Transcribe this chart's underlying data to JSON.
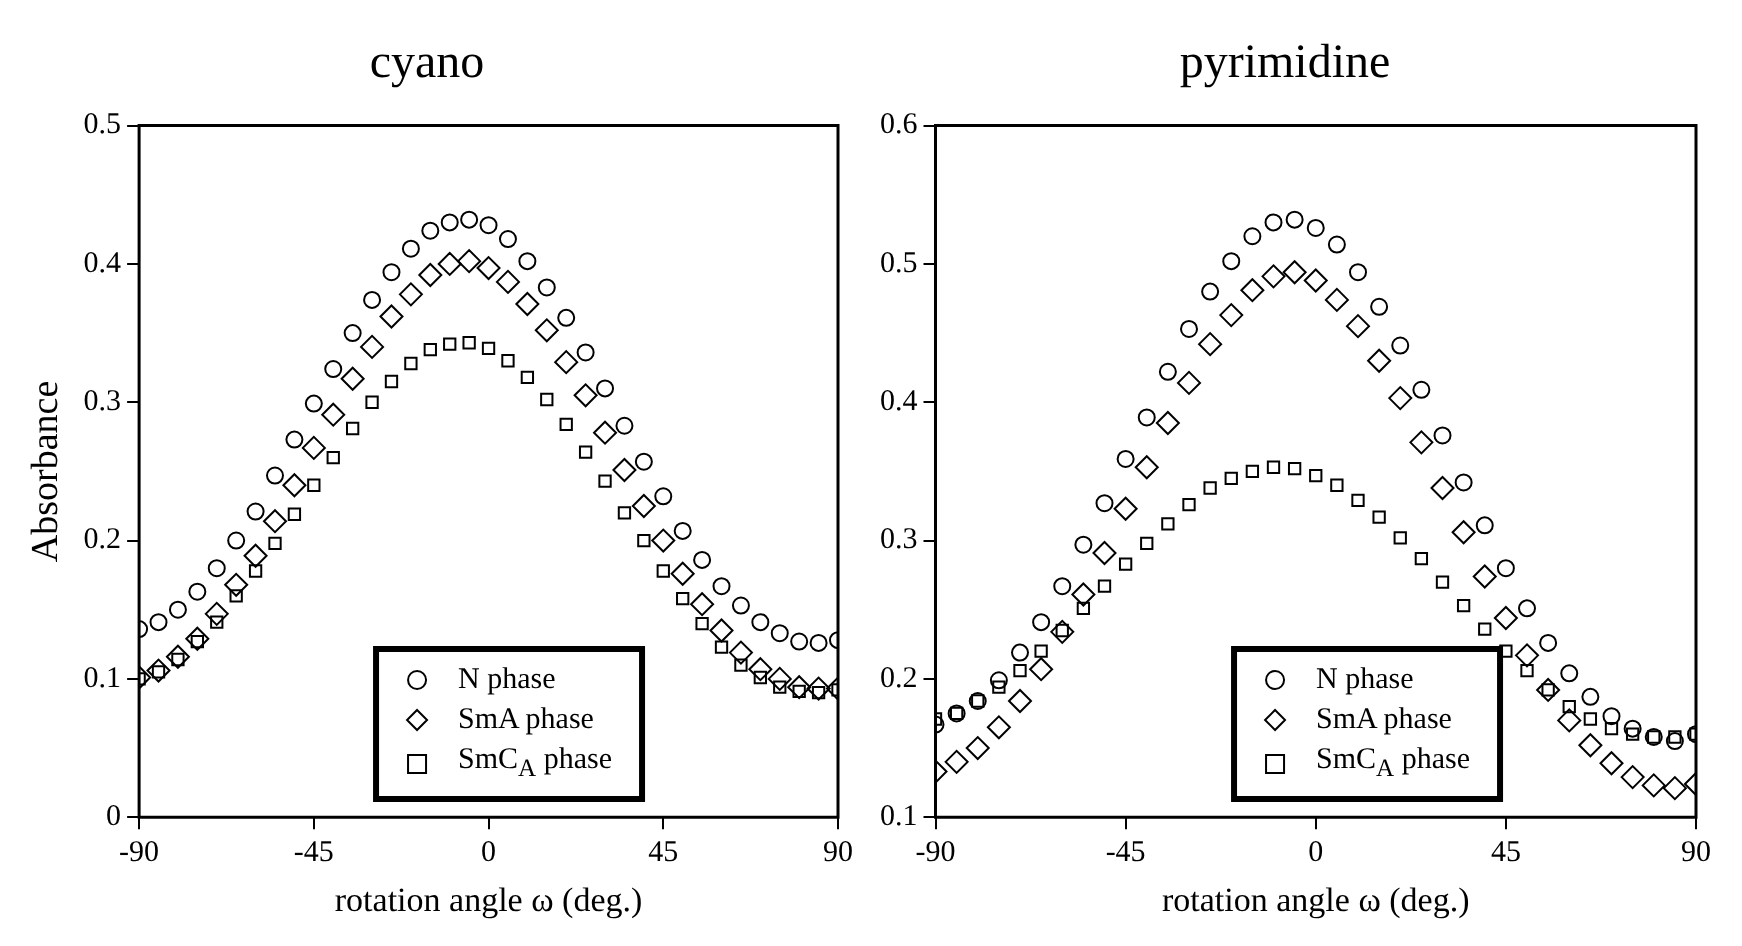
{
  "chart_data": [
    {
      "type": "scatter",
      "title": "cyano",
      "xlabel": "rotation angle ω (deg.)",
      "ylabel": "Absorbance",
      "legend": "bottom",
      "xlim": [
        -90,
        90
      ],
      "xticks": [
        -90,
        -45,
        0,
        45,
        90
      ],
      "ylim": [
        0,
        0.5
      ],
      "yticks": [
        0,
        0.1,
        0.2,
        0.3,
        0.4,
        0.5
      ],
      "x": [
        -90,
        -85,
        -80,
        -75,
        -70,
        -65,
        -60,
        -55,
        -50,
        -45,
        -40,
        -35,
        -30,
        -25,
        -20,
        -15,
        -10,
        -5,
        0,
        5,
        10,
        15,
        20,
        25,
        30,
        35,
        40,
        45,
        50,
        55,
        60,
        65,
        70,
        75,
        80,
        85,
        90
      ],
      "series": [
        {
          "name": "N phase",
          "color": "#000000",
          "marker": "circle",
          "values": [
            0.136,
            0.141,
            0.15,
            0.163,
            0.18,
            0.2,
            0.221,
            0.247,
            0.273,
            0.299,
            0.324,
            0.35,
            0.374,
            0.394,
            0.411,
            0.424,
            0.43,
            0.432,
            0.428,
            0.418,
            0.402,
            0.383,
            0.361,
            0.336,
            0.31,
            0.283,
            0.257,
            0.232,
            0.207,
            0.186,
            0.167,
            0.153,
            0.141,
            0.133,
            0.127,
            0.126,
            0.128
          ]
        },
        {
          "name": "SmA phase",
          "color": "#000000",
          "marker": "diamond",
          "values": [
            0.101,
            0.106,
            0.116,
            0.129,
            0.147,
            0.168,
            0.189,
            0.214,
            0.24,
            0.267,
            0.291,
            0.317,
            0.34,
            0.362,
            0.378,
            0.392,
            0.4,
            0.402,
            0.397,
            0.387,
            0.371,
            0.352,
            0.329,
            0.305,
            0.278,
            0.251,
            0.225,
            0.2,
            0.176,
            0.154,
            0.135,
            0.119,
            0.107,
            0.1,
            0.094,
            0.093,
            0.093
          ]
        },
        {
          "name": "SmC$_{A}$ phase",
          "color": "#000000",
          "marker": "square",
          "values": [
            0.1,
            0.105,
            0.114,
            0.127,
            0.141,
            0.16,
            0.178,
            0.198,
            0.219,
            0.24,
            0.26,
            0.281,
            0.3,
            0.315,
            0.328,
            0.338,
            0.342,
            0.343,
            0.339,
            0.33,
            0.318,
            0.302,
            0.284,
            0.264,
            0.243,
            0.22,
            0.2,
            0.178,
            0.158,
            0.14,
            0.123,
            0.11,
            0.101,
            0.094,
            0.091,
            0.09,
            0.092
          ]
        }
      ]
    },
    {
      "type": "scatter",
      "title": "pyrimidine",
      "xlabel": "rotation angle ω (deg.)",
      "legend": "bottom",
      "xlim": [
        -90,
        90
      ],
      "xticks": [
        -90,
        -45,
        0,
        45,
        90
      ],
      "ylim": [
        0.1,
        0.6
      ],
      "yticks": [
        0.1,
        0.2,
        0.3,
        0.4,
        0.5,
        0.6
      ],
      "x": [
        -90,
        -85,
        -80,
        -75,
        -70,
        -65,
        -60,
        -55,
        -50,
        -45,
        -40,
        -35,
        -30,
        -25,
        -20,
        -15,
        -10,
        -5,
        0,
        5,
        10,
        15,
        20,
        25,
        30,
        35,
        40,
        45,
        50,
        55,
        60,
        65,
        70,
        75,
        80,
        85,
        90
      ],
      "series": [
        {
          "name": "N phase",
          "color": "#000000",
          "marker": "circle",
          "values": [
            0.167,
            0.175,
            0.184,
            0.199,
            0.219,
            0.241,
            0.267,
            0.297,
            0.327,
            0.359,
            0.389,
            0.422,
            0.453,
            0.48,
            0.502,
            0.52,
            0.53,
            0.532,
            0.526,
            0.514,
            0.494,
            0.469,
            0.441,
            0.409,
            0.376,
            0.342,
            0.311,
            0.28,
            0.251,
            0.226,
            0.204,
            0.187,
            0.173,
            0.164,
            0.158,
            0.155,
            0.16
          ]
        },
        {
          "name": "SmA phase",
          "color": "#000000",
          "marker": "diamond",
          "values": [
            0.133,
            0.14,
            0.15,
            0.165,
            0.184,
            0.207,
            0.234,
            0.261,
            0.291,
            0.323,
            0.353,
            0.385,
            0.414,
            0.442,
            0.463,
            0.481,
            0.491,
            0.494,
            0.488,
            0.474,
            0.455,
            0.43,
            0.403,
            0.371,
            0.338,
            0.306,
            0.274,
            0.244,
            0.217,
            0.192,
            0.17,
            0.152,
            0.139,
            0.129,
            0.123,
            0.121,
            0.124
          ]
        },
        {
          "name": "SmC$_{A}$ phase",
          "color": "#000000",
          "marker": "square",
          "values": [
            0.171,
            0.175,
            0.184,
            0.194,
            0.206,
            0.22,
            0.235,
            0.251,
            0.267,
            0.283,
            0.298,
            0.312,
            0.326,
            0.338,
            0.345,
            0.35,
            0.353,
            0.352,
            0.347,
            0.34,
            0.329,
            0.317,
            0.302,
            0.287,
            0.27,
            0.253,
            0.236,
            0.22,
            0.206,
            0.192,
            0.18,
            0.171,
            0.164,
            0.16,
            0.158,
            0.158,
            0.16
          ]
        }
      ]
    }
  ]
}
